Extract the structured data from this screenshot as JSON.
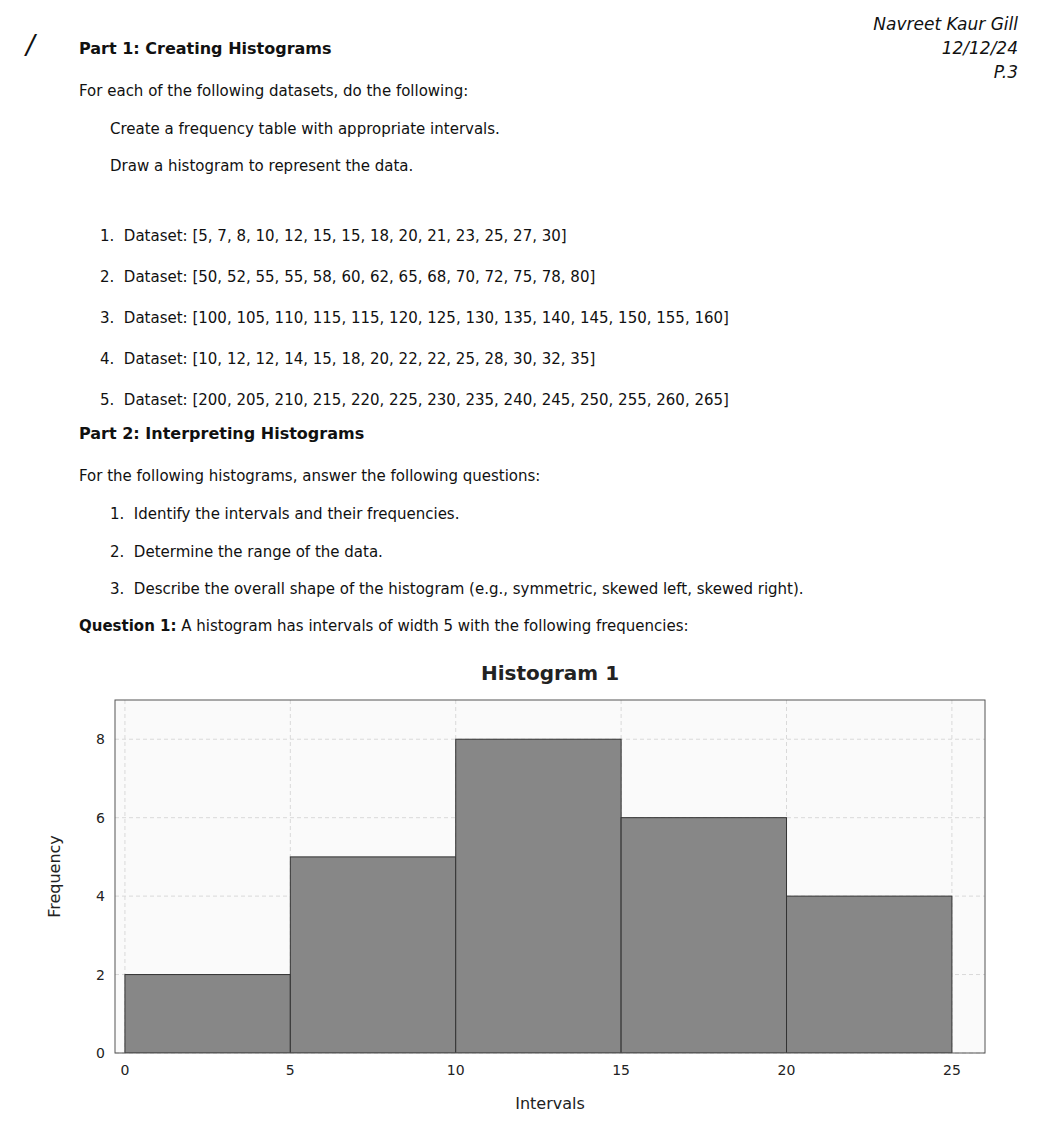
{
  "chart_data": {
    "type": "histogram",
    "title": "Histogram 1",
    "x_label": "Intervals",
    "y_label": "Frequency",
    "bins": [
      0,
      5,
      10,
      15,
      20,
      25
    ],
    "values": [
      2,
      5,
      8,
      6,
      4
    ],
    "color": "#878787",
    "xlim": [
      -0.3,
      26
    ],
    "xticks": [
      0,
      5,
      10,
      15,
      20,
      25
    ],
    "ylim": [
      0,
      9
    ],
    "yticks": [
      0,
      2,
      4,
      6,
      8
    ],
    "grid": true,
    "annotations": [
      "/",
      "Navreet Kaur Gill",
      "12/12/24",
      "P.3",
      "Part 1: Creating Histograms",
      "For each of the following datasets, do the following:",
      "Create a frequency table with appropriate intervals.",
      "Draw a histogram to represent the data.",
      "1.  Dataset: [5, 7, 8, 10, 12, 15, 15, 18, 20, 21, 23, 25, 27, 30]",
      "2.  Dataset: [50, 52, 55, 55, 58, 60, 62, 65, 68, 70, 72, 75, 78, 80]",
      "3.  Dataset: [100, 105, 110, 115, 115, 120, 125, 130, 135, 140, 145, 150, 155, 160]",
      "4.  Dataset: [10, 12, 12, 14, 15, 18, 20, 22, 22, 25, 28, 30, 32, 35]",
      "5.  Dataset: [200, 205, 210, 215, 220, 225, 230, 235, 240, 245, 250, 255, 260, 265]",
      "Part 2: Interpreting Histograms",
      "For the following histograms, answer the following questions:",
      "1.  Identify the intervals and their frequencies.",
      "2.  Determine the range of the data.",
      "3.  Describe the overall shape of the histogram (e.g., symmetric, skewed left, skewed right).",
      "Question 1:",
      " A histogram has intervals of width 5 with the following frequencies:"
    ]
  }
}
